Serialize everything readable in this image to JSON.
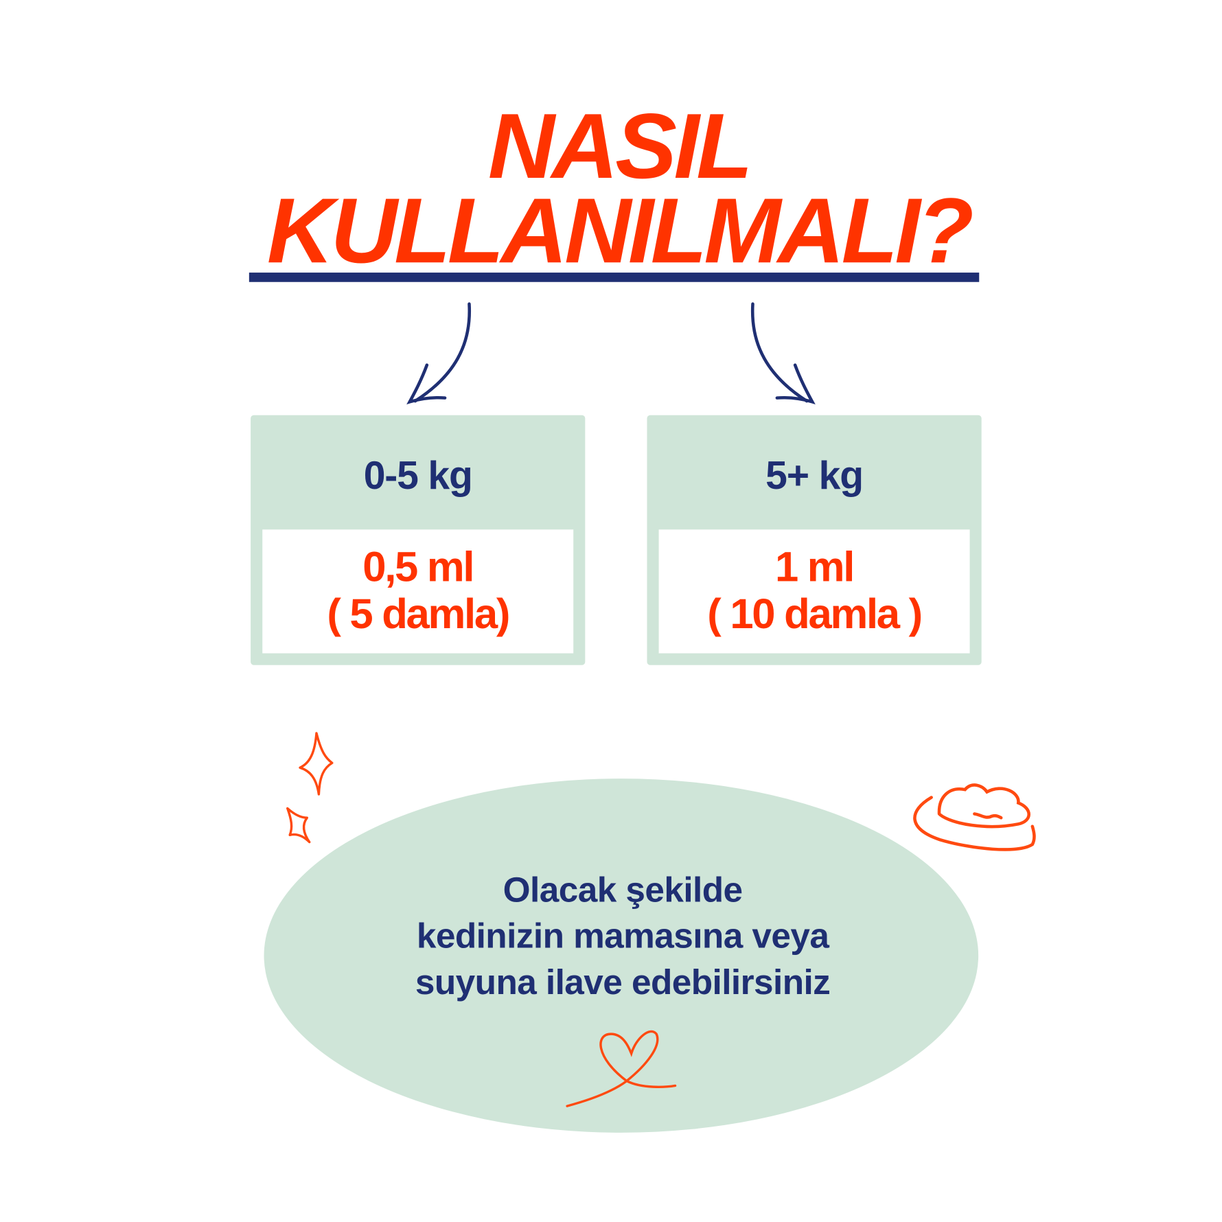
{
  "title": {
    "line1": "NASIL",
    "line2": "KULLANILMALI?"
  },
  "dosages": [
    {
      "weight": "0-5 kg",
      "amount": "0,5 ml",
      "drops": "( 5 damla)"
    },
    {
      "weight": "5+ kg",
      "amount": "1 ml",
      "drops": "( 10 damla )"
    }
  ],
  "instructions": {
    "line1": "Olacak şekilde",
    "line2": "kedinizin mamasına veya",
    "line3": "suyuna ilave edebilirsiniz"
  },
  "colors": {
    "accent": "#ff3300",
    "navy": "#1f2f73",
    "panel": "#cfe5d8"
  },
  "icons": [
    "arrow-down-left-icon",
    "arrow-down-right-icon",
    "sparkle-icon",
    "food-bowl-icon",
    "heart-icon"
  ]
}
